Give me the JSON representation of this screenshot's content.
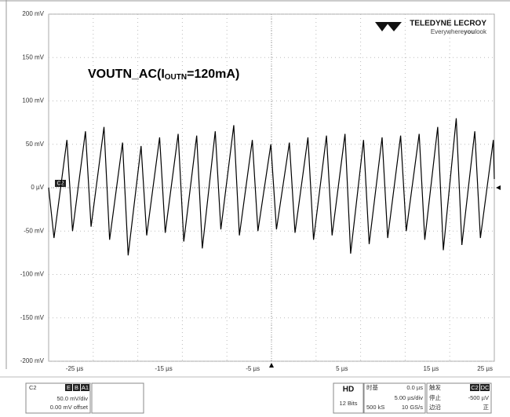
{
  "chart_data": {
    "type": "line",
    "annotation": {
      "main": "VOUTN_AC(I",
      "sub": "OUTN",
      "tail": "=120mA)"
    },
    "channel_marker": "C2",
    "x": [
      -25,
      -24.4,
      -22.95,
      -22.32,
      -20.87,
      -20.24,
      -18.79,
      -18.16,
      -16.71,
      -16.08,
      -14.63,
      -14.0,
      -12.55,
      -11.92,
      -10.47,
      -9.84,
      -8.39,
      -7.76,
      -6.31,
      -5.68,
      -4.23,
      -3.6,
      -2.15,
      -1.52,
      -0.07,
      0.56,
      2.01,
      2.64,
      4.09,
      4.72,
      6.17,
      6.8,
      8.25,
      8.88,
      10.33,
      10.96,
      12.41,
      13.04,
      14.49,
      15.12,
      16.57,
      17.2,
      18.65,
      19.28,
      20.73,
      21.36,
      22.81,
      23.44,
      24.89,
      25
    ],
    "values": [
      0,
      -58,
      55,
      -50,
      65,
      -45,
      70,
      -60,
      52,
      -78,
      48,
      -55,
      58,
      -52,
      62,
      -62,
      60,
      -70,
      65,
      -48,
      72,
      -55,
      55,
      -50,
      50,
      -48,
      52,
      -52,
      58,
      -60,
      60,
      -55,
      62,
      -76,
      55,
      -65,
      58,
      -58,
      60,
      -50,
      62,
      -60,
      70,
      -72,
      80,
      -66,
      65,
      -58,
      55,
      10
    ],
    "color": "#000000",
    "xlim": [
      -25,
      25
    ],
    "xticks": [
      {
        "value": -25,
        "label": "-25 µs"
      },
      {
        "value": -15,
        "label": "-15 µs"
      },
      {
        "value": -5,
        "label": "-5 µs"
      },
      {
        "value": 5,
        "label": "5 µs"
      },
      {
        "value": 15,
        "label": "15 µs"
      },
      {
        "value": 25,
        "label": "25 µs"
      }
    ],
    "ylim": [
      -200,
      200
    ],
    "yticks": [
      {
        "value": 200,
        "label": "200 mV"
      },
      {
        "value": 150,
        "label": "150 mV"
      },
      {
        "value": 100,
        "label": "100 mV"
      },
      {
        "value": 50,
        "label": "50 mV"
      },
      {
        "value": 0,
        "label": "0 µV"
      },
      {
        "value": -50,
        "label": "-50 mV"
      },
      {
        "value": -100,
        "label": "-100 mV"
      },
      {
        "value": -150,
        "label": "-150 mV"
      },
      {
        "value": -200,
        "label": "-200 mV"
      }
    ],
    "grid": true
  },
  "logo": {
    "brand": "TELEDYNE LECROY",
    "tag1": "Everywhere",
    "tag2": "you",
    "tag3": "look"
  },
  "panels": {
    "channel": {
      "name": "C2",
      "badges": [
        "E",
        "B",
        "A1"
      ],
      "scale": "50.0 mV/div",
      "offset": "0.00 mV offset"
    },
    "hd": {
      "name": "HD",
      "bits": "12 Bits"
    },
    "timebase": {
      "title": "时基",
      "delay": "0.0 µs",
      "div": "5.00 µs/div",
      "samples": "500 kS",
      "rate": "10 GS/s"
    },
    "trigger": {
      "title": "触发",
      "src": "C2",
      "coupling": "DC",
      "mode": "停止",
      "level": "-500 µV",
      "type": "边沿",
      "slope": "正"
    }
  }
}
